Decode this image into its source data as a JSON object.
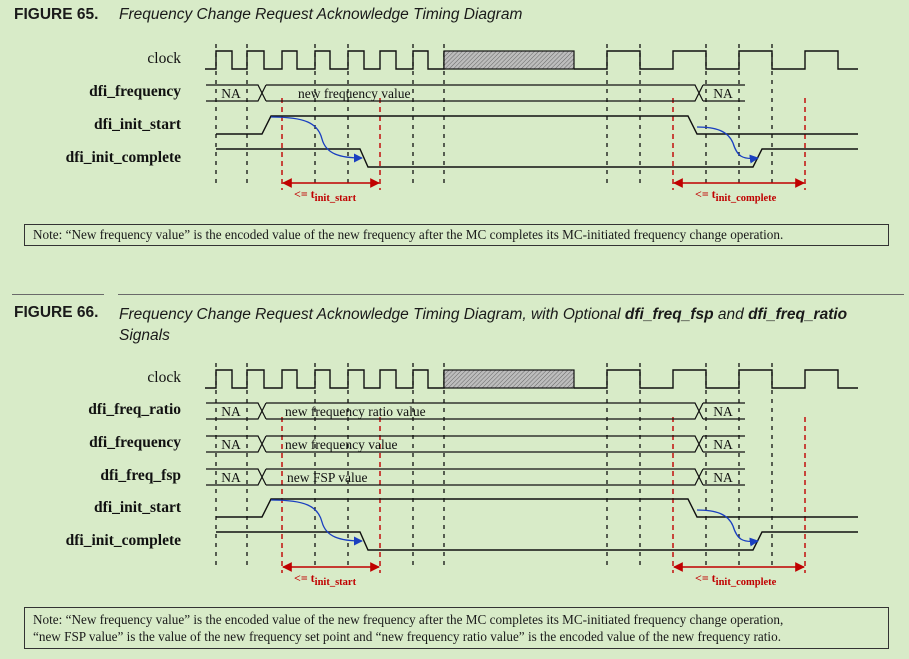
{
  "figure65": {
    "number": "FIGURE 65.",
    "title": "Frequency Change Request Acknowledge Timing Diagram",
    "signals": [
      "clock",
      "dfi_frequency",
      "dfi_init_start",
      "dfi_init_complete"
    ],
    "bus_values": {
      "na": "NA",
      "frequency": "new frequency value"
    },
    "timing": {
      "prefix": "<= t",
      "start_sub": "init_start",
      "complete_sub": "init_complete"
    },
    "note": "Note: “New frequency value” is the encoded value of the new frequency after the MC completes its MC-initiated frequency change operation."
  },
  "figure66": {
    "number": "FIGURE 66.",
    "title_plain": "Frequency Change Request Acknowledge Timing Diagram, with Optional ",
    "title_bold1": "dfi_freq_fsp",
    "title_and": " and ",
    "title_bold2": "dfi_freq_ratio",
    "title_line2": "Signals",
    "signals": [
      "clock",
      "dfi_freq_ratio",
      "dfi_frequency",
      "dfi_freq_fsp",
      "dfi_init_start",
      "dfi_init_complete"
    ],
    "bus_values": {
      "na": "NA",
      "ratio": "new frequency ratio value",
      "frequency": "new frequency value",
      "fsp": "new FSP value"
    },
    "timing": {
      "prefix": "<= t",
      "start_sub": "init_start",
      "complete_sub": "init_complete"
    },
    "note_line1": "Note: “New frequency value” is the encoded value of the new frequency after the MC completes its MC-initiated frequency change operation,",
    "note_line2": "“new FSP value” is the value of the new frequency set point and “new frequency ratio value” is the encoded value of the new frequency ratio."
  },
  "colors": {
    "background": "#d8ebc8",
    "red": "#c00000",
    "arrow_blue": "#1a3fc0",
    "line": "#111111"
  }
}
